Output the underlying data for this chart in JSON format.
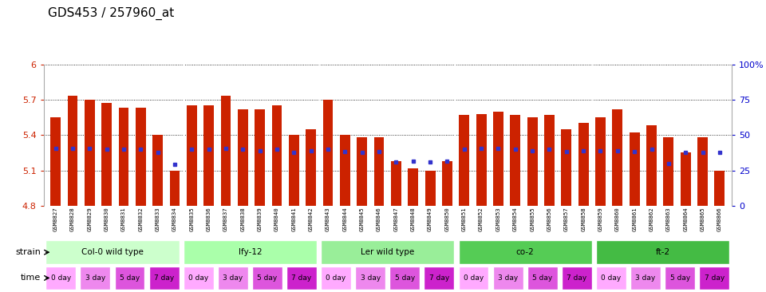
{
  "title": "GDS453 / 257960_at",
  "samples": [
    "GSM8827",
    "GSM8828",
    "GSM8829",
    "GSM8830",
    "GSM8831",
    "GSM8832",
    "GSM8833",
    "GSM8834",
    "GSM8835",
    "GSM8836",
    "GSM8837",
    "GSM8838",
    "GSM8839",
    "GSM8840",
    "GSM8841",
    "GSM8842",
    "GSM8843",
    "GSM8844",
    "GSM8845",
    "GSM8846",
    "GSM8847",
    "GSM8848",
    "GSM8849",
    "GSM8850",
    "GSM8851",
    "GSM8852",
    "GSM8853",
    "GSM8854",
    "GSM8855",
    "GSM8856",
    "GSM8857",
    "GSM8858",
    "GSM8859",
    "GSM8860",
    "GSM8861",
    "GSM8862",
    "GSM8863",
    "GSM8864",
    "GSM8865",
    "GSM8866"
  ],
  "bar_values": [
    5.55,
    5.73,
    5.7,
    5.67,
    5.63,
    5.63,
    5.4,
    5.1,
    5.65,
    5.65,
    5.73,
    5.62,
    5.62,
    5.65,
    5.4,
    5.45,
    5.7,
    5.4,
    5.38,
    5.38,
    5.18,
    5.12,
    5.1,
    5.18,
    5.57,
    5.58,
    5.6,
    5.57,
    5.55,
    5.57,
    5.45,
    5.5,
    5.55,
    5.62,
    5.42,
    5.48,
    5.38,
    5.25,
    5.38,
    5.1
  ],
  "percentile_values": [
    5.29,
    5.29,
    5.29,
    5.28,
    5.28,
    5.28,
    5.25,
    5.15,
    5.28,
    5.28,
    5.29,
    5.28,
    5.27,
    5.28,
    5.25,
    5.27,
    5.28,
    5.26,
    5.25,
    5.26,
    5.17,
    5.18,
    5.17,
    5.18,
    5.28,
    5.29,
    5.29,
    5.28,
    5.27,
    5.28,
    5.26,
    5.27,
    5.27,
    5.27,
    5.26,
    5.28,
    5.16,
    5.25,
    5.25,
    5.25
  ],
  "ymin": 4.8,
  "ymax": 6.0,
  "yticks": [
    4.8,
    5.1,
    5.4,
    5.7,
    6.0
  ],
  "ytick_labels": [
    "4.8",
    "5.1",
    "5.4",
    "5.7",
    "6"
  ],
  "right_yticks": [
    0,
    25,
    50,
    75,
    100
  ],
  "right_ytick_labels": [
    "0",
    "25",
    "50",
    "75",
    "100%"
  ],
  "bar_color": "#cc2200",
  "blue_color": "#3333cc",
  "strains": [
    {
      "label": "Col-0 wild type",
      "start": 0,
      "end": 8,
      "color": "#ccffcc"
    },
    {
      "label": "lfy-12",
      "start": 8,
      "end": 16,
      "color": "#aaffaa"
    },
    {
      "label": "Ler wild type",
      "start": 16,
      "end": 24,
      "color": "#99ee99"
    },
    {
      "label": "co-2",
      "start": 24,
      "end": 32,
      "color": "#55cc55"
    },
    {
      "label": "ft-2",
      "start": 32,
      "end": 40,
      "color": "#44bb44"
    }
  ],
  "time_labels": [
    "0 day",
    "3 day",
    "5 day",
    "7 day"
  ],
  "time_colors": [
    "#ffaaff",
    "#ee88ee",
    "#dd55dd",
    "#cc22cc"
  ],
  "bg_color": "#ffffff",
  "tick_color_left": "#cc2200",
  "tick_color_right": "#0000cc"
}
